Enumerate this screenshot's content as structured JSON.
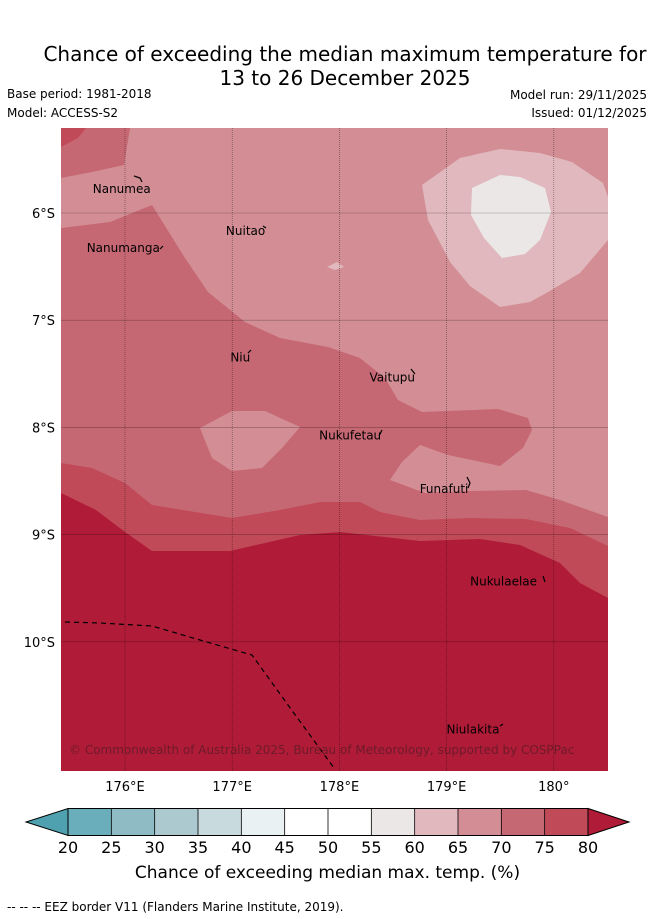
{
  "title": {
    "line1": "Chance of exceeding the median maximum temperature for",
    "line2": "13 to 26 December 2025"
  },
  "meta": {
    "base_period": "Base period: 1981-2018",
    "model": "Model: ACCESS-S2",
    "model_run": "Model run: 29/11/2025",
    "issued": "Issued: 01/12/2025"
  },
  "map": {
    "lon_range": [
      175.5,
      180.5
    ],
    "lat_range": [
      -11.0,
      -5.0
    ],
    "lon_ticks": [
      {
        "value": 176,
        "label": "176°E"
      },
      {
        "value": 177,
        "label": "177°E"
      },
      {
        "value": 178,
        "label": "178°E"
      },
      {
        "value": 179,
        "label": "179°E"
      },
      {
        "value": 180,
        "label": "180°"
      }
    ],
    "lat_ticks": [
      {
        "value": -6,
        "label": "6°S"
      },
      {
        "value": -7,
        "label": "7°S"
      },
      {
        "value": -8,
        "label": "8°S"
      },
      {
        "value": -9,
        "label": "9°S"
      },
      {
        "value": -10,
        "label": "10°S"
      }
    ],
    "islands": [
      {
        "name": "Nanumea",
        "lon": 176.1,
        "lat": -5.7
      },
      {
        "name": "Nuitao",
        "lon": 177.33,
        "lat": -6.13
      },
      {
        "name": "Nanumanga",
        "lon": 176.32,
        "lat": -6.29
      },
      {
        "name": "Niu",
        "lon": 177.15,
        "lat": -7.29
      },
      {
        "name": "Vaitupu",
        "lon": 178.68,
        "lat": -7.48
      },
      {
        "name": "Nukufetau",
        "lon": 178.38,
        "lat": -8.02
      },
      {
        "name": "Funafuti",
        "lon": 179.2,
        "lat": -8.52
      },
      {
        "name": "Nukulaelae",
        "lon": 179.83,
        "lat": -9.38
      },
      {
        "name": "Niulakita",
        "lon": 179.47,
        "lat": -10.78
      }
    ],
    "copyright": "© Commonwealth of Australia 2025, Bureau of Meteorology, supported by COSPPac"
  },
  "colorbar": {
    "ticks": [
      "20",
      "25",
      "30",
      "35",
      "40",
      "45",
      "50",
      "55",
      "60",
      "65",
      "70",
      "75",
      "80"
    ],
    "colors": [
      "#4fa1b0",
      "#6aaebb",
      "#8fbbc5",
      "#abc9ce",
      "#c9dade",
      "#eaf1f3",
      "#ffffff",
      "#ffffff",
      "#ebe7e7",
      "#e0b8bd",
      "#d38e95",
      "#c66873",
      "#c14a58",
      "#b01c38"
    ],
    "label": "Chance of exceeding median max. temp. (%)"
  },
  "footer": "--  --  -- EEZ border V11 (Flanders Marine Institute, 2019).",
  "colors": {
    "c80": "#b01c38",
    "c75": "#c14a58",
    "c70": "#c66873",
    "c65": "#d38e95",
    "c60": "#e0b8bd",
    "c55": "#ebe7e7"
  }
}
